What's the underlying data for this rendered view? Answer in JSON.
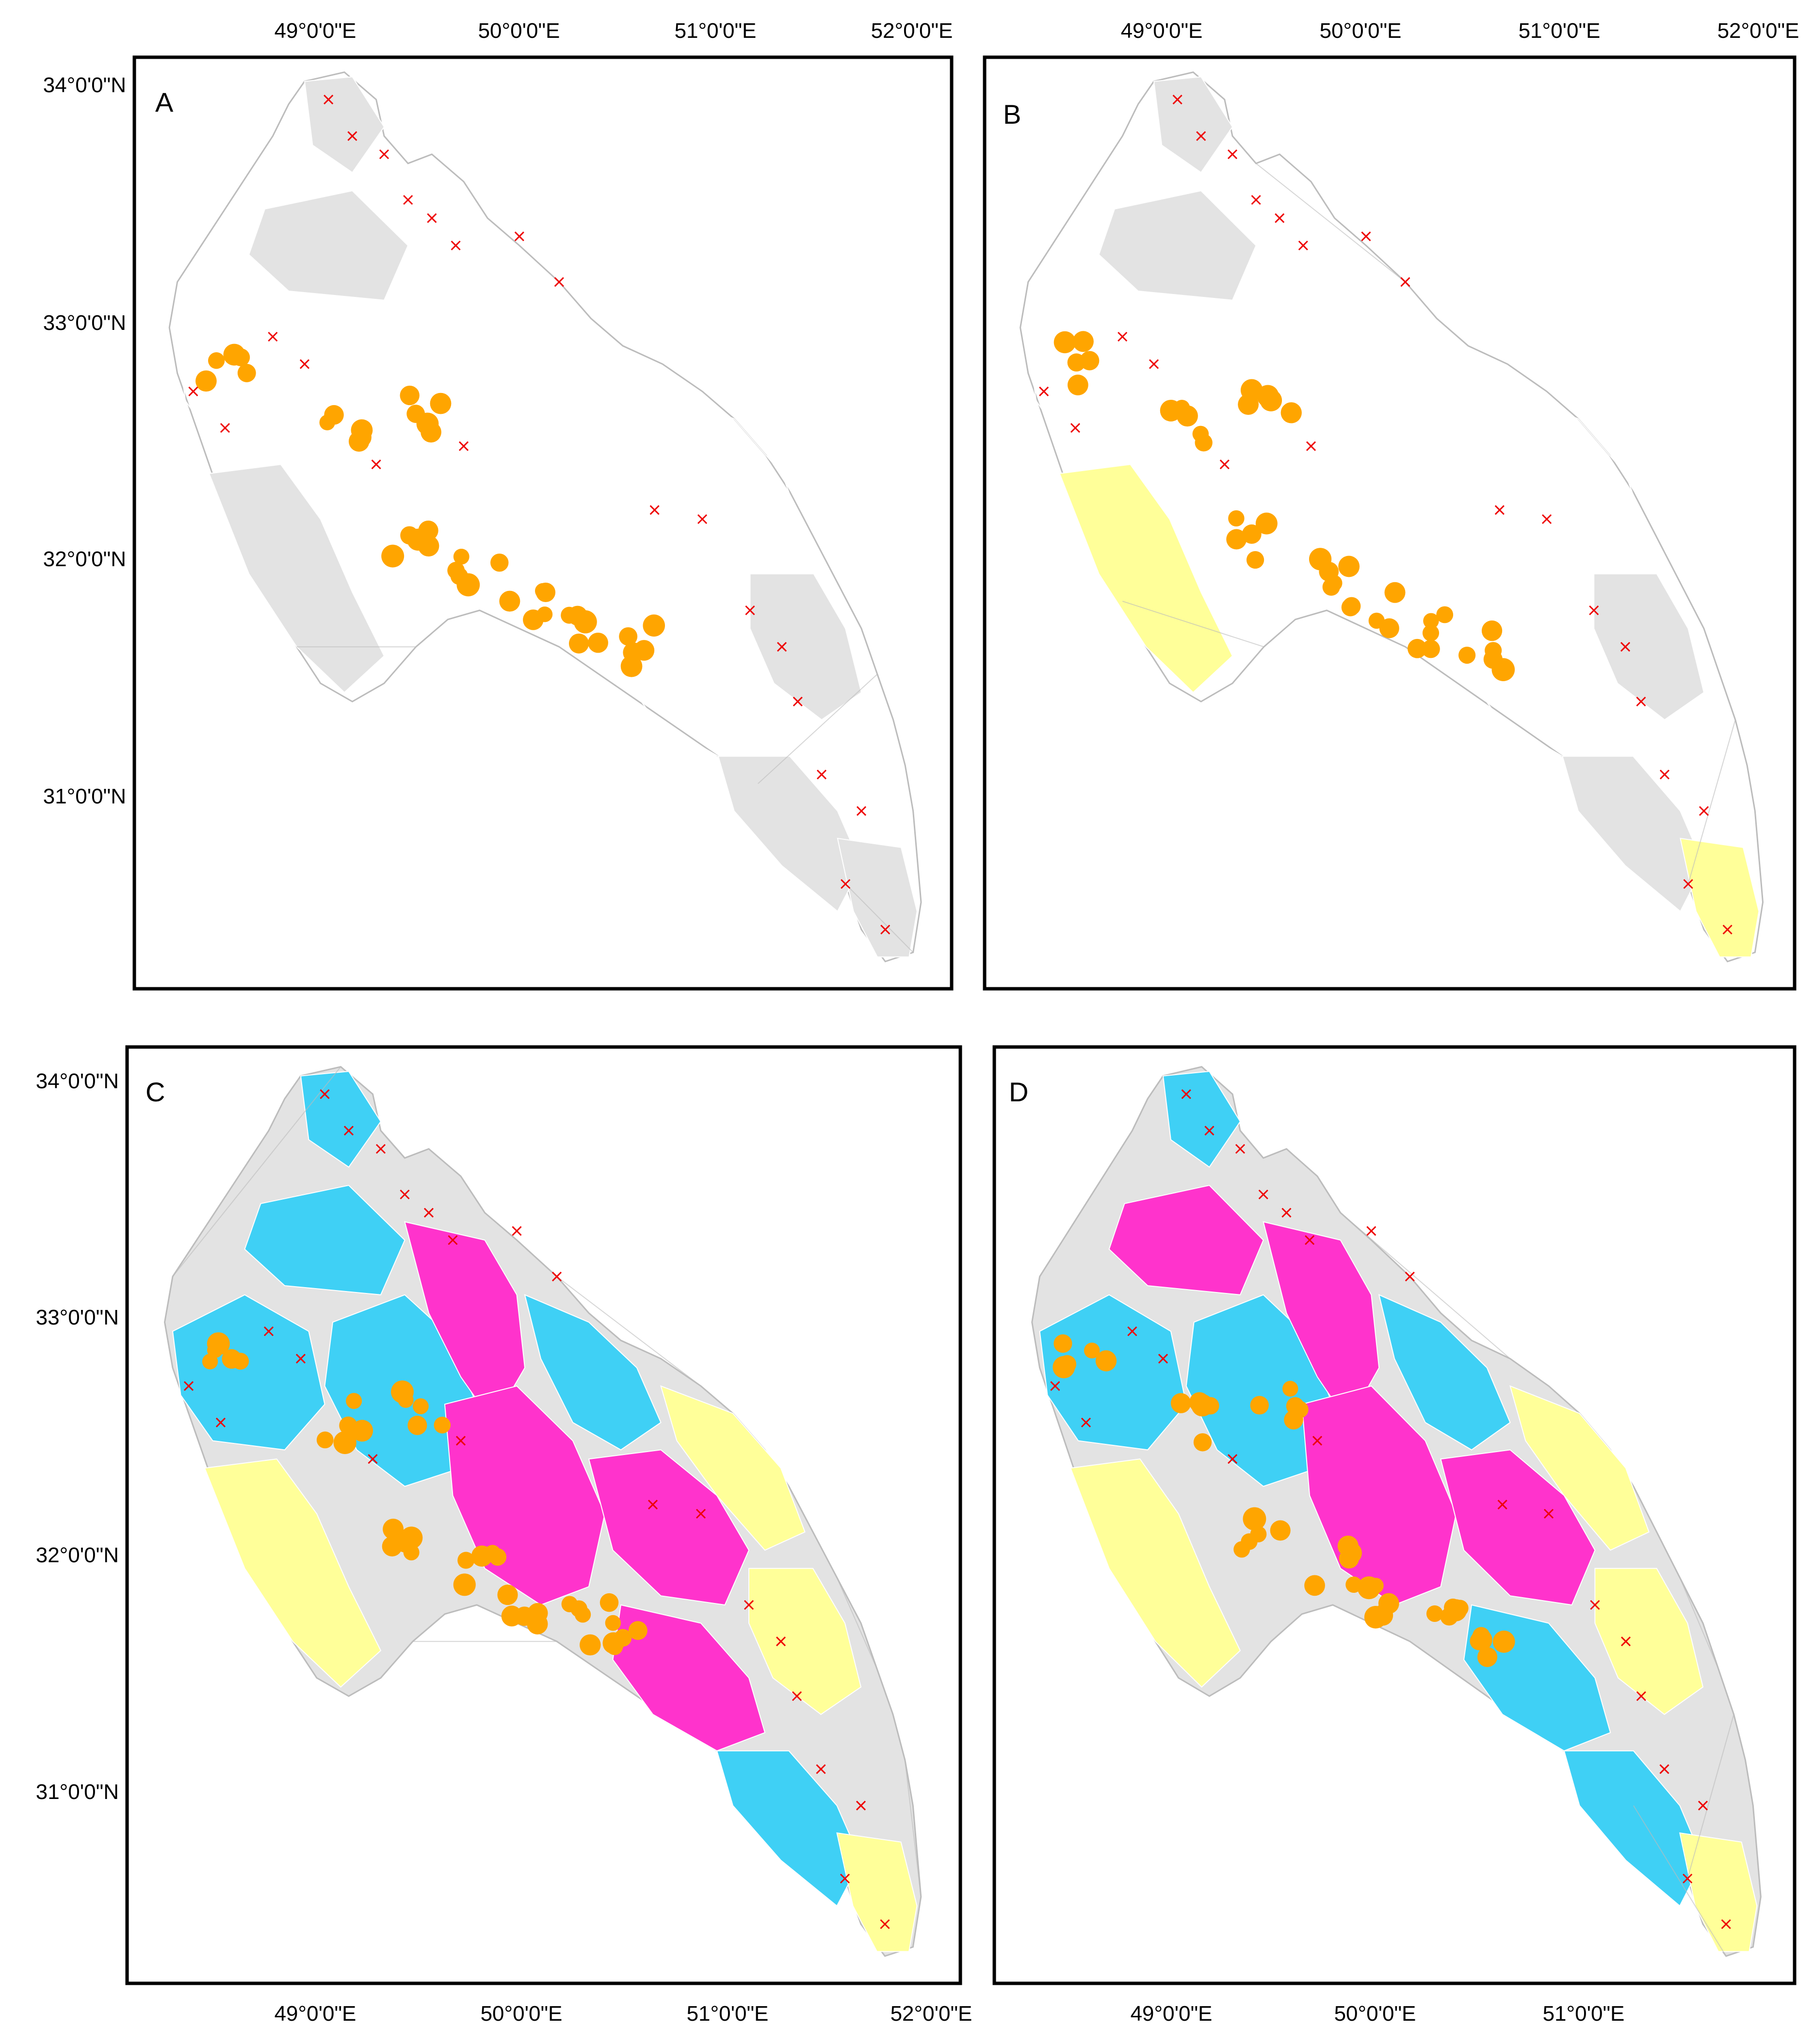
{
  "colors": {
    "grey": "#e3e3e3",
    "outline": "#bcbcbc",
    "magenta": "#ff33cc",
    "cyan": "#3fd0f5",
    "yellow": "#ffff99",
    "orange": "#ffa500",
    "cross": "#ee0000"
  },
  "panels": [
    {
      "id": "A",
      "label": "A",
      "lat_labels": [
        "34°0'0\"N",
        "33°0'0\"N",
        "32°0'0\"N",
        "31°0'0\"N"
      ],
      "lon_labels_top": [
        "49°0'0\"E",
        "50°0'0\"E",
        "51°0'0\"E",
        "52°0'0\"E"
      ],
      "lon_labels_bottom": [],
      "fill": "low"
    },
    {
      "id": "B",
      "label": "B",
      "lat_labels": [],
      "lon_labels_top": [
        "49°0'0\"E",
        "50°0'0\"E",
        "51°0'0\"E",
        "52°0'0\"E"
      ],
      "lon_labels_bottom": [],
      "fill": "low"
    },
    {
      "id": "C",
      "label": "C",
      "lat_labels": [
        "34°0'0\"N",
        "33°0'0\"N",
        "32°0'0\"N",
        "31°0'0\"N"
      ],
      "lon_labels_top": [],
      "lon_labels_bottom": [
        "49°0'0\"E",
        "50°0'0\"E",
        "51°0'0\"E",
        "52°0'0\"E"
      ],
      "fill": "high"
    },
    {
      "id": "D",
      "label": "D",
      "lat_labels": [],
      "lon_labels_top": [],
      "lon_labels_bottom": [
        "49°0'0\"E",
        "50°0'0\"E",
        "51°0'0\"E"
      ],
      "fill": "high"
    }
  ]
}
